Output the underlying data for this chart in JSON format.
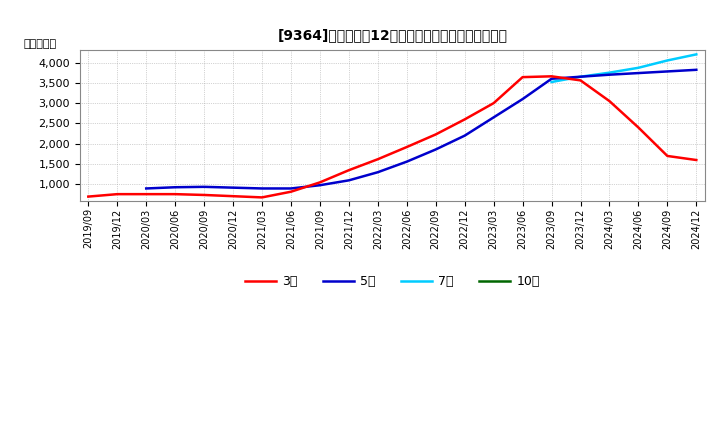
{
  "title": "[9364]　経常利益12か月移動合計の標準偏差の推移",
  "ylabel": "（百万円）",
  "background_color": "#ffffff",
  "plot_bg_color": "#ffffff",
  "grid_color": "#aaaaaa",
  "ylim": [
    600,
    4300
  ],
  "yticks": [
    1000,
    1500,
    2000,
    2500,
    3000,
    3500,
    4000
  ],
  "legend": [
    "3年",
    "5年",
    "7年",
    "10年"
  ],
  "colors": [
    "#ff0000",
    "#0000cc",
    "#00ccff",
    "#006600"
  ],
  "x_labels": [
    "2019/09",
    "2019/12",
    "2020/03",
    "2020/06",
    "2020/09",
    "2020/12",
    "2021/03",
    "2021/06",
    "2021/09",
    "2021/12",
    "2022/03",
    "2022/06",
    "2022/09",
    "2022/12",
    "2023/03",
    "2023/06",
    "2023/09",
    "2023/12",
    "2024/03",
    "2024/06",
    "2024/09",
    "2024/12"
  ],
  "series_3y": [
    700,
    760,
    760,
    760,
    740,
    710,
    680,
    820,
    1050,
    1350,
    1620,
    1920,
    2230,
    2600,
    3000,
    3640,
    3660,
    3560,
    3050,
    2400,
    1700,
    1600
  ],
  "series_5y": [
    null,
    null,
    900,
    930,
    940,
    920,
    900,
    900,
    980,
    1100,
    1300,
    1560,
    1860,
    2200,
    2650,
    3100,
    3600,
    3650,
    3700,
    3740,
    3780,
    3820
  ],
  "series_7y": [
    null,
    null,
    null,
    null,
    null,
    null,
    null,
    null,
    null,
    null,
    null,
    null,
    null,
    null,
    null,
    null,
    3520,
    3650,
    3750,
    3870,
    4050,
    4200
  ],
  "series_10y": [
    null,
    null,
    null,
    null,
    null,
    null,
    null,
    null,
    null,
    null,
    null,
    null,
    null,
    null,
    null,
    null,
    null,
    null,
    null,
    null,
    null,
    null
  ]
}
